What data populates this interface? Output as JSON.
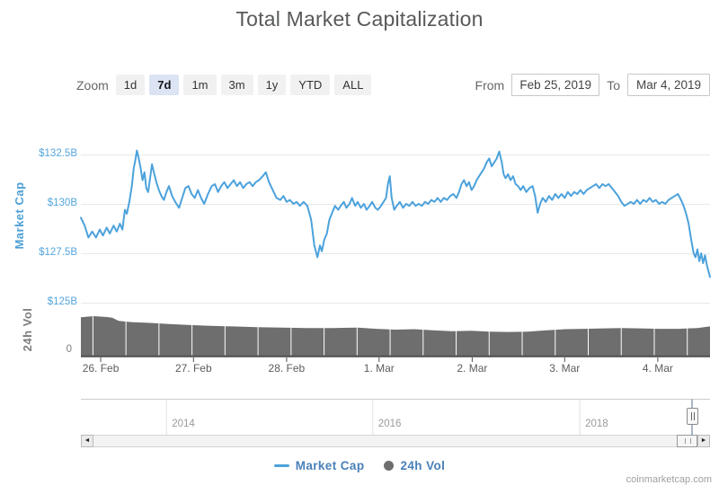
{
  "page": {
    "title": "Total Market Capitalization",
    "attribution": "coinmarketcap.com"
  },
  "toolbar": {
    "zoom_label": "Zoom",
    "zoom_options": [
      {
        "label": "1d",
        "selected": false
      },
      {
        "label": "7d",
        "selected": true
      },
      {
        "label": "1m",
        "selected": false
      },
      {
        "label": "3m",
        "selected": false
      },
      {
        "label": "1y",
        "selected": false
      },
      {
        "label": "YTD",
        "selected": false
      },
      {
        "label": "ALL",
        "selected": false
      }
    ],
    "from_label": "From",
    "from_value": "Feb 25, 2019",
    "to_label": "To",
    "to_value": "Mar 4, 2019"
  },
  "icons": {
    "scroll_left": "◄",
    "scroll_right": "►"
  },
  "legend": [
    {
      "label": "Market Cap",
      "marker": "line",
      "color": "#4ca2dc"
    },
    {
      "label": "24h Vol",
      "marker": "circle",
      "color": "#6e6e6e"
    }
  ],
  "chart_data": {
    "type": "line",
    "title": "Total Market Capitalization",
    "x_range": [
      "Feb 25, 2019",
      "Mar 4, 2019"
    ],
    "x_ticks": [
      {
        "t": 0.0315,
        "label": "26. Feb"
      },
      {
        "t": 0.179,
        "label": "27. Feb"
      },
      {
        "t": 0.327,
        "label": "28. Feb"
      },
      {
        "t": 0.474,
        "label": "1. Mar"
      },
      {
        "t": 0.622,
        "label": "2. Mar"
      },
      {
        "t": 0.769,
        "label": "3. Mar"
      },
      {
        "t": 0.917,
        "label": "4. Mar"
      }
    ],
    "y_axis": {
      "title": "Market Cap",
      "unit": "USD billions",
      "range": [
        125,
        133.2
      ],
      "ticks": [
        {
          "value": 132.5,
          "label": "$132.5B"
        },
        {
          "value": 130,
          "label": "$130B"
        },
        {
          "value": 127.5,
          "label": "$127.5B"
        },
        {
          "value": 125,
          "label": "$125B"
        }
      ]
    },
    "volume_axis": {
      "title": "24h Vol",
      "ticks": [
        {
          "value": 0,
          "label": "0"
        }
      ]
    },
    "navigator": {
      "years": [
        {
          "t": 0.136,
          "label": "2014"
        },
        {
          "t": 0.464,
          "label": "2016"
        },
        {
          "t": 0.793,
          "label": "2018"
        }
      ]
    },
    "series": [
      {
        "name": "Market Cap",
        "type": "line",
        "color": "#4ca2dc",
        "unit": "USD billions",
        "points": [
          [
            0.0,
            129.3
          ],
          [
            0.006,
            128.9
          ],
          [
            0.012,
            128.3
          ],
          [
            0.018,
            128.6
          ],
          [
            0.024,
            128.3
          ],
          [
            0.03,
            128.7
          ],
          [
            0.035,
            128.4
          ],
          [
            0.041,
            128.8
          ],
          [
            0.046,
            128.5
          ],
          [
            0.052,
            128.9
          ],
          [
            0.057,
            128.6
          ],
          [
            0.062,
            129.0
          ],
          [
            0.066,
            128.7
          ],
          [
            0.07,
            129.7
          ],
          [
            0.073,
            129.5
          ],
          [
            0.077,
            130.1
          ],
          [
            0.081,
            130.9
          ],
          [
            0.084,
            131.8
          ],
          [
            0.087,
            132.3
          ],
          [
            0.089,
            132.7
          ],
          [
            0.092,
            132.3
          ],
          [
            0.095,
            131.8
          ],
          [
            0.098,
            131.2
          ],
          [
            0.101,
            131.6
          ],
          [
            0.104,
            130.8
          ],
          [
            0.107,
            130.6
          ],
          [
            0.11,
            131.3
          ],
          [
            0.113,
            132.0
          ],
          [
            0.116,
            131.6
          ],
          [
            0.12,
            131.1
          ],
          [
            0.124,
            130.7
          ],
          [
            0.128,
            130.4
          ],
          [
            0.132,
            130.2
          ],
          [
            0.136,
            130.6
          ],
          [
            0.14,
            130.9
          ],
          [
            0.145,
            130.4
          ],
          [
            0.15,
            130.1
          ],
          [
            0.156,
            129.8
          ],
          [
            0.161,
            130.3
          ],
          [
            0.166,
            130.8
          ],
          [
            0.171,
            130.9
          ],
          [
            0.176,
            130.5
          ],
          [
            0.181,
            130.3
          ],
          [
            0.186,
            130.7
          ],
          [
            0.191,
            130.3
          ],
          [
            0.196,
            130.0
          ],
          [
            0.202,
            130.5
          ],
          [
            0.208,
            130.9
          ],
          [
            0.213,
            131.0
          ],
          [
            0.218,
            130.6
          ],
          [
            0.223,
            130.9
          ],
          [
            0.228,
            131.1
          ],
          [
            0.233,
            130.8
          ],
          [
            0.238,
            131.0
          ],
          [
            0.243,
            131.2
          ],
          [
            0.248,
            130.9
          ],
          [
            0.253,
            131.1
          ],
          [
            0.258,
            130.8
          ],
          [
            0.263,
            131.0
          ],
          [
            0.268,
            131.1
          ],
          [
            0.273,
            130.9
          ],
          [
            0.278,
            131.1
          ],
          [
            0.283,
            131.2
          ],
          [
            0.289,
            131.4
          ],
          [
            0.294,
            131.6
          ],
          [
            0.299,
            131.1
          ],
          [
            0.305,
            130.7
          ],
          [
            0.311,
            130.3
          ],
          [
            0.317,
            130.2
          ],
          [
            0.322,
            130.4
          ],
          [
            0.327,
            130.1
          ],
          [
            0.332,
            130.2
          ],
          [
            0.338,
            130.0
          ],
          [
            0.343,
            130.1
          ],
          [
            0.348,
            129.9
          ],
          [
            0.354,
            130.1
          ],
          [
            0.36,
            129.9
          ],
          [
            0.366,
            129.2
          ],
          [
            0.371,
            127.9
          ],
          [
            0.376,
            127.3
          ],
          [
            0.38,
            127.9
          ],
          [
            0.383,
            127.6
          ],
          [
            0.387,
            128.2
          ],
          [
            0.391,
            128.5
          ],
          [
            0.395,
            129.2
          ],
          [
            0.4,
            129.6
          ],
          [
            0.404,
            129.9
          ],
          [
            0.409,
            129.7
          ],
          [
            0.413,
            129.9
          ],
          [
            0.418,
            130.1
          ],
          [
            0.422,
            129.8
          ],
          [
            0.427,
            130.0
          ],
          [
            0.431,
            130.3
          ],
          [
            0.436,
            129.9
          ],
          [
            0.44,
            130.1
          ],
          [
            0.445,
            129.8
          ],
          [
            0.45,
            130.0
          ],
          [
            0.454,
            129.7
          ],
          [
            0.459,
            129.9
          ],
          [
            0.463,
            130.1
          ],
          [
            0.468,
            129.8
          ],
          [
            0.472,
            129.7
          ],
          [
            0.477,
            129.9
          ],
          [
            0.481,
            130.1
          ],
          [
            0.485,
            130.3
          ],
          [
            0.488,
            131.0
          ],
          [
            0.491,
            131.4
          ],
          [
            0.494,
            130.3
          ],
          [
            0.498,
            129.7
          ],
          [
            0.502,
            129.9
          ],
          [
            0.507,
            130.1
          ],
          [
            0.512,
            129.8
          ],
          [
            0.517,
            130.0
          ],
          [
            0.522,
            129.9
          ],
          [
            0.527,
            130.1
          ],
          [
            0.532,
            129.9
          ],
          [
            0.537,
            130.0
          ],
          [
            0.542,
            129.9
          ],
          [
            0.547,
            130.1
          ],
          [
            0.552,
            130.0
          ],
          [
            0.557,
            130.2
          ],
          [
            0.562,
            130.1
          ],
          [
            0.567,
            130.3
          ],
          [
            0.572,
            130.1
          ],
          [
            0.577,
            130.3
          ],
          [
            0.582,
            130.2
          ],
          [
            0.587,
            130.4
          ],
          [
            0.592,
            130.5
          ],
          [
            0.597,
            130.3
          ],
          [
            0.601,
            130.6
          ],
          [
            0.605,
            131.0
          ],
          [
            0.609,
            131.2
          ],
          [
            0.613,
            130.9
          ],
          [
            0.617,
            131.1
          ],
          [
            0.621,
            130.7
          ],
          [
            0.625,
            130.9
          ],
          [
            0.629,
            131.2
          ],
          [
            0.633,
            131.4
          ],
          [
            0.637,
            131.6
          ],
          [
            0.641,
            131.8
          ],
          [
            0.645,
            132.1
          ],
          [
            0.649,
            132.3
          ],
          [
            0.653,
            131.9
          ],
          [
            0.657,
            132.1
          ],
          [
            0.661,
            132.3
          ],
          [
            0.665,
            132.65
          ],
          [
            0.669,
            132.1
          ],
          [
            0.672,
            131.5
          ],
          [
            0.675,
            131.3
          ],
          [
            0.679,
            131.5
          ],
          [
            0.683,
            131.2
          ],
          [
            0.687,
            131.4
          ],
          [
            0.691,
            131.0
          ],
          [
            0.695,
            130.9
          ],
          [
            0.699,
            130.7
          ],
          [
            0.703,
            130.9
          ],
          [
            0.708,
            130.6
          ],
          [
            0.713,
            130.8
          ],
          [
            0.718,
            130.9
          ],
          [
            0.722,
            130.4
          ],
          [
            0.726,
            129.55
          ],
          [
            0.73,
            130.0
          ],
          [
            0.734,
            130.3
          ],
          [
            0.739,
            130.1
          ],
          [
            0.744,
            130.4
          ],
          [
            0.749,
            130.2
          ],
          [
            0.754,
            130.5
          ],
          [
            0.759,
            130.3
          ],
          [
            0.764,
            130.5
          ],
          [
            0.769,
            130.3
          ],
          [
            0.774,
            130.6
          ],
          [
            0.779,
            130.4
          ],
          [
            0.784,
            130.6
          ],
          [
            0.789,
            130.5
          ],
          [
            0.794,
            130.7
          ],
          [
            0.799,
            130.5
          ],
          [
            0.804,
            130.7
          ],
          [
            0.809,
            130.8
          ],
          [
            0.814,
            130.9
          ],
          [
            0.819,
            131.0
          ],
          [
            0.824,
            130.8
          ],
          [
            0.829,
            131.0
          ],
          [
            0.834,
            130.9
          ],
          [
            0.839,
            131.0
          ],
          [
            0.844,
            130.8
          ],
          [
            0.849,
            130.6
          ],
          [
            0.854,
            130.4
          ],
          [
            0.859,
            130.1
          ],
          [
            0.864,
            129.9
          ],
          [
            0.869,
            130.0
          ],
          [
            0.874,
            130.1
          ],
          [
            0.879,
            130.0
          ],
          [
            0.884,
            130.2
          ],
          [
            0.889,
            130.0
          ],
          [
            0.894,
            130.2
          ],
          [
            0.899,
            130.1
          ],
          [
            0.904,
            130.3
          ],
          [
            0.909,
            130.1
          ],
          [
            0.914,
            130.2
          ],
          [
            0.919,
            130.0
          ],
          [
            0.924,
            130.1
          ],
          [
            0.929,
            130.0
          ],
          [
            0.934,
            130.2
          ],
          [
            0.939,
            130.3
          ],
          [
            0.944,
            130.4
          ],
          [
            0.949,
            130.5
          ],
          [
            0.954,
            130.2
          ],
          [
            0.958,
            129.9
          ],
          [
            0.962,
            129.5
          ],
          [
            0.966,
            129.0
          ],
          [
            0.97,
            128.2
          ],
          [
            0.974,
            127.5
          ],
          [
            0.977,
            127.3
          ],
          [
            0.98,
            127.7
          ],
          [
            0.983,
            127.1
          ],
          [
            0.986,
            127.5
          ],
          [
            0.989,
            127.0
          ],
          [
            0.992,
            127.4
          ],
          [
            0.995,
            126.9
          ],
          [
            1.0,
            126.3
          ]
        ]
      },
      {
        "name": "24h Vol",
        "type": "column",
        "color": "#6e6e6e",
        "note": "relative height of volume bars, 0-1 of pane; axis shows only 0",
        "profile": [
          [
            0.0,
            0.97
          ],
          [
            0.02,
            1.0
          ],
          [
            0.04,
            0.98
          ],
          [
            0.05,
            0.96
          ],
          [
            0.06,
            0.88
          ],
          [
            0.08,
            0.85
          ],
          [
            0.11,
            0.83
          ],
          [
            0.14,
            0.8
          ],
          [
            0.17,
            0.78
          ],
          [
            0.2,
            0.76
          ],
          [
            0.24,
            0.74
          ],
          [
            0.28,
            0.72
          ],
          [
            0.32,
            0.71
          ],
          [
            0.36,
            0.7
          ],
          [
            0.4,
            0.7
          ],
          [
            0.44,
            0.71
          ],
          [
            0.47,
            0.68
          ],
          [
            0.5,
            0.66
          ],
          [
            0.53,
            0.67
          ],
          [
            0.56,
            0.64
          ],
          [
            0.59,
            0.62
          ],
          [
            0.62,
            0.63
          ],
          [
            0.65,
            0.61
          ],
          [
            0.68,
            0.6
          ],
          [
            0.71,
            0.61
          ],
          [
            0.74,
            0.64
          ],
          [
            0.77,
            0.67
          ],
          [
            0.8,
            0.68
          ],
          [
            0.83,
            0.69
          ],
          [
            0.86,
            0.7
          ],
          [
            0.89,
            0.69
          ],
          [
            0.92,
            0.68
          ],
          [
            0.95,
            0.68
          ],
          [
            0.98,
            0.7
          ],
          [
            1.0,
            0.74
          ]
        ]
      }
    ]
  }
}
